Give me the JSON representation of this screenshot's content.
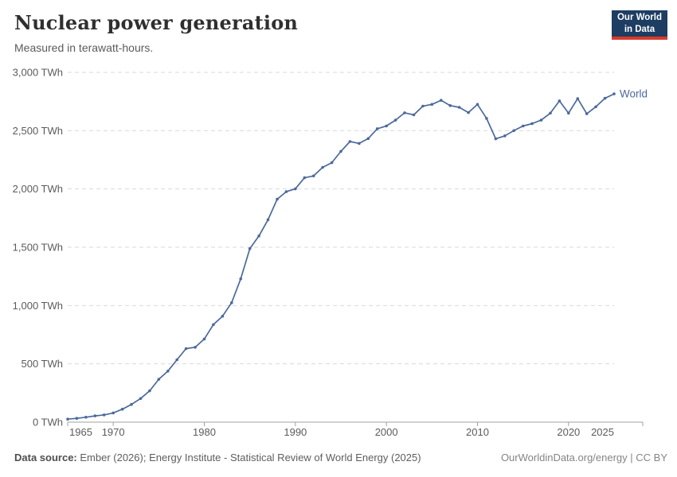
{
  "header": {
    "title": "Nuclear power generation",
    "subtitle": "Measured in terawatt-hours.",
    "logo": {
      "line1": "Our World",
      "line2": "in Data"
    }
  },
  "footer": {
    "source_label": "Data source:",
    "source_text": " Ember (2026); Energy Institute - Statistical Review of World Energy (2025)",
    "right_text": "OurWorldinData.org/energy | CC BY"
  },
  "chart_data": {
    "type": "line",
    "title": "Nuclear power generation",
    "unit": "TWh",
    "series": [
      {
        "name": "World",
        "x": [
          1965,
          1966,
          1967,
          1968,
          1969,
          1970,
          1971,
          1972,
          1973,
          1974,
          1975,
          1976,
          1977,
          1978,
          1979,
          1980,
          1981,
          1982,
          1983,
          1984,
          1985,
          1986,
          1987,
          1988,
          1989,
          1990,
          1991,
          1992,
          1993,
          1994,
          1995,
          1996,
          1997,
          1998,
          1999,
          2000,
          2001,
          2002,
          2003,
          2004,
          2005,
          2006,
          2007,
          2008,
          2009,
          2010,
          2011,
          2012,
          2013,
          2014,
          2015,
          2016,
          2017,
          2018,
          2019,
          2020,
          2021,
          2022,
          2023,
          2024,
          2025
        ],
        "values": [
          25.7,
          32.6,
          42.2,
          53.6,
          62.3,
          79.2,
          111.1,
          152.1,
          202.8,
          268.4,
          367.2,
          438.0,
          535.1,
          630.7,
          642.1,
          712.9,
          836.9,
          908.6,
          1023.8,
          1228.7,
          1488.7,
          1596.6,
          1735.8,
          1911.8,
          1976.6,
          2000.7,
          2096.1,
          2111.6,
          2185.5,
          2225.3,
          2322.5,
          2406.5,
          2390.5,
          2431.8,
          2516.5,
          2540.4,
          2590.5,
          2652.7,
          2634.9,
          2710.0,
          2725.0,
          2760.0,
          2715.0,
          2700.0,
          2655.0,
          2725.0,
          2605.0,
          2430.0,
          2455.0,
          2500.0,
          2540.0,
          2560.0,
          2590.0,
          2650.0,
          2755.0,
          2650.0,
          2775.0,
          2645.0,
          2705.0,
          2778.0,
          2815.0
        ]
      }
    ],
    "entity_label": "World",
    "xlim": [
      1965,
      2025
    ],
    "ylim": [
      0,
      3000
    ],
    "yticks": [
      0,
      500,
      1000,
      1500,
      2000,
      2500,
      3000
    ],
    "ytick_labels": [
      "0 TWh",
      "500 TWh",
      "1,000 TWh",
      "1,500 TWh",
      "2,000 TWh",
      "2,500 TWh",
      "3,000 TWh"
    ],
    "xticks": [
      1965,
      1970,
      1980,
      1990,
      2000,
      2010,
      2020,
      2025
    ],
    "xtick_labels": [
      "1965",
      "1970",
      "1980",
      "1990",
      "2000",
      "2010",
      "2020",
      "2025"
    ],
    "grid": true,
    "legend_position": "end-of-line",
    "colors": {
      "line": "#4c699b",
      "grid": "#dadada",
      "axis": "#a1a1a1",
      "tick_text": "#5b5b5b",
      "series_label_text": "#4c699b"
    }
  }
}
